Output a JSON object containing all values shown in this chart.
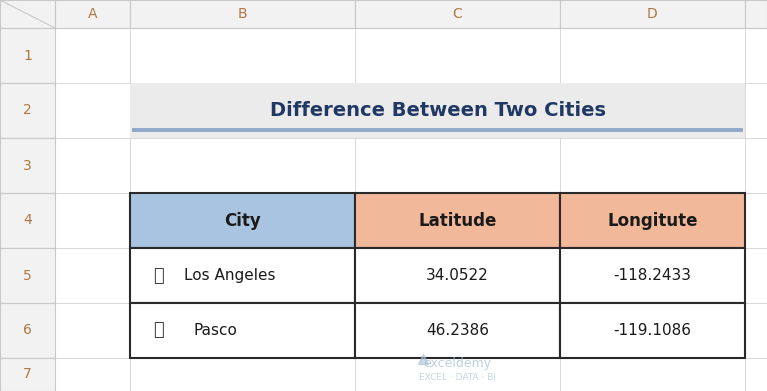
{
  "title": "Difference Between Two Cities",
  "title_color": "#1F3864",
  "title_bg_color": "#EBEBEB",
  "title_underline_color": "#8FA8C8",
  "col_headers": [
    "City",
    "Latitude",
    "Longitute"
  ],
  "col_header_bg": [
    "#A8C4E0",
    "#F2B89A",
    "#F2B89A"
  ],
  "col_header_text_color": "#1a1a1a",
  "row1_city": "Los Angeles",
  "row1_lat": "34.0522",
  "row1_lon": "-118.2433",
  "row2_city": "Pasco",
  "row2_lat": "46.2386",
  "row2_lon": "-119.1086",
  "row_bg": "#FFFFFF",
  "grid_color": "#2a2a2a",
  "cell_text_color": "#1a1a1a",
  "spreadsheet_bg": "#FFFFFF",
  "col_header_labels": [
    "A",
    "B",
    "C",
    "D"
  ],
  "header_bg": "#F2F2F2",
  "header_border": "#C8C8C8",
  "header_text_color": "#B07840",
  "row_number_color": "#B07840",
  "watermark_text": "exceldemy",
  "watermark_sub": "EXCEL · DATA · BI",
  "watermark_color": "#A8C0D8",
  "map_icon": "啛"
}
